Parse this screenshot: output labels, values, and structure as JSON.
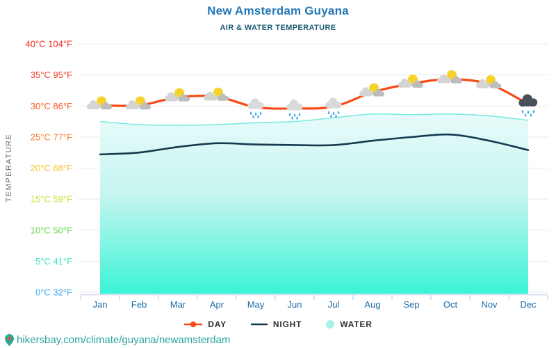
{
  "header": {
    "title": "New Amsterdam Guyana",
    "subtitle": "AIR & WATER TEMPERATURE"
  },
  "legend": {
    "items": [
      {
        "label": "DAY",
        "color": "#f84a15",
        "marker": "line-dot"
      },
      {
        "label": "NIGHT",
        "color": "#143a50",
        "marker": "line"
      },
      {
        "label": "WATER",
        "color": "#a5f3e9",
        "marker": "circle"
      }
    ]
  },
  "footer": {
    "url": "hikersbay.com/climate/guyana/newamsterdam",
    "pin_color": "#2aa79b",
    "pin_dot_color": "#e8503a"
  },
  "chart_data": {
    "type": "line",
    "title": "New Amsterdam Guyana",
    "subtitle": "AIR & WATER TEMPERATURE",
    "ylabel": "TEMPERATURE",
    "categories": [
      "Jan",
      "Feb",
      "Mar",
      "Apr",
      "May",
      "Jun",
      "Jul",
      "Aug",
      "Sep",
      "Oct",
      "Nov",
      "Dec"
    ],
    "ylim": [
      0,
      40
    ],
    "grid": true,
    "legend_position": "bottom",
    "y_ticks": [
      {
        "value": 40,
        "label": "40°C 104°F",
        "color": "#ed2d24"
      },
      {
        "value": 35,
        "label": "35°C 95°F",
        "color": "#f03d26"
      },
      {
        "value": 30,
        "label": "30°C 86°F",
        "color": "#f75b22"
      },
      {
        "value": 25,
        "label": "25°C 77°F",
        "color": "#fb7d28"
      },
      {
        "value": 20,
        "label": "20°C 68°F",
        "color": "#f9c22e"
      },
      {
        "value": 15,
        "label": "15°C 59°F",
        "color": "#cfe03a"
      },
      {
        "value": 10,
        "label": "10°C 50°F",
        "color": "#67da44"
      },
      {
        "value": 5,
        "label": "5°C 41°F",
        "color": "#3ce9c0"
      },
      {
        "value": 0,
        "label": "0°C 32°F",
        "color": "#3aacf0"
      }
    ],
    "series": [
      {
        "name": "DAY",
        "type": "line",
        "color": "#f84a15",
        "values": [
          30.1,
          30.1,
          31.4,
          31.5,
          29.8,
          29.6,
          29.9,
          32.2,
          33.6,
          34.3,
          33.5,
          30.3
        ]
      },
      {
        "name": "NIGHT",
        "type": "line",
        "color": "#143a50",
        "values": [
          22.2,
          22.5,
          23.4,
          24.0,
          23.8,
          23.7,
          23.7,
          24.4,
          25.0,
          25.4,
          24.4,
          22.9
        ]
      },
      {
        "name": "WATER",
        "type": "area",
        "edge_color": "#7debe0",
        "fill_stops": [
          "#e7fbfa",
          "#c6f5f0",
          "#7af5e2",
          "#3cf3d6"
        ],
        "values": [
          27.5,
          27.0,
          26.9,
          27.0,
          27.3,
          27.5,
          28.1,
          28.7,
          28.6,
          28.7,
          28.4,
          27.7
        ]
      }
    ],
    "weather_icons": [
      "sun-cloud",
      "sun-cloud",
      "sun-cloud",
      "sun-cloud",
      "rain-cloud",
      "rain-cloud",
      "rain-cloud",
      "sun-cloud",
      "sun-cloud",
      "sun-cloud",
      "sun-cloud",
      "dark-rain-cloud"
    ],
    "axis_color": "#c9d5ea",
    "grid_color": "#e9e9e9",
    "month_label_color": "#1a6ba6",
    "ylabel_color": "#6a6a6a"
  }
}
